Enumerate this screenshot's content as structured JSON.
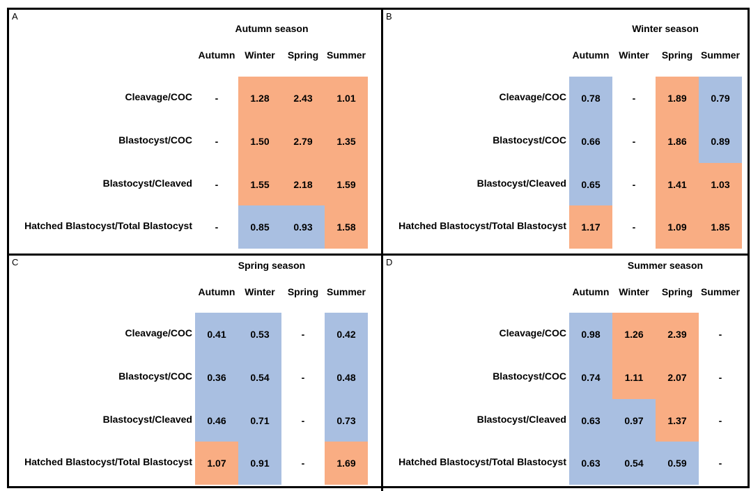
{
  "colors": {
    "higher": "#F9AD83",
    "lower": "#A9BFE1",
    "none": "#ffffff"
  },
  "chart_data": [
    {
      "type": "heatmap",
      "panel": "A",
      "title": "Autumn season",
      "columns": [
        "Autumn",
        "Winter",
        "Spring",
        "Summer"
      ],
      "rows": [
        "Cleavage/COC",
        "Blastocyst/COC",
        "Blastocyst/Cleaved",
        "Hatched Blastocyst/Total Blastocyst"
      ],
      "values": [
        [
          "-",
          "1.28",
          "2.43",
          "1.01"
        ],
        [
          "-",
          "1.50",
          "2.79",
          "1.35"
        ],
        [
          "-",
          "1.55",
          "2.18",
          "1.59"
        ],
        [
          "-",
          "0.85",
          "0.93",
          "1.58"
        ]
      ]
    },
    {
      "type": "heatmap",
      "panel": "B",
      "title": "Winter season",
      "columns": [
        "Autumn",
        "Winter",
        "Spring",
        "Summer"
      ],
      "rows": [
        "Cleavage/COC",
        "Blastocyst/COC",
        "Blastocyst/Cleaved",
        "Hatched Blastocyst/Total Blastocyst"
      ],
      "values": [
        [
          "0.78",
          "-",
          "1.89",
          "0.79"
        ],
        [
          "0.66",
          "-",
          "1.86",
          "0.89"
        ],
        [
          "0.65",
          "-",
          "1.41",
          "1.03"
        ],
        [
          "1.17",
          "-",
          "1.09",
          "1.85"
        ]
      ]
    },
    {
      "type": "heatmap",
      "panel": "C",
      "title": "Spring season",
      "columns": [
        "Autumn",
        "Winter",
        "Spring",
        "Summer"
      ],
      "rows": [
        "Cleavage/COC",
        "Blastocyst/COC",
        "Blastocyst/Cleaved",
        "Hatched Blastocyst/Total Blastocyst"
      ],
      "values": [
        [
          "0.41",
          "0.53",
          "-",
          "0.42"
        ],
        [
          "0.36",
          "0.54",
          "-",
          "0.48"
        ],
        [
          "0.46",
          "0.71",
          "-",
          "0.73"
        ],
        [
          "1.07",
          "0.91",
          "-",
          "1.69"
        ]
      ]
    },
    {
      "type": "heatmap",
      "panel": "D",
      "title": "Summer season",
      "columns": [
        "Autumn",
        "Winter",
        "Spring",
        "Summer"
      ],
      "rows": [
        "Cleavage/COC",
        "Blastocyst/COC",
        "Blastocyst/Cleaved",
        "Hatched Blastocyst/Total Blastocyst"
      ],
      "values": [
        [
          "0.98",
          "1.26",
          "2.39",
          "-"
        ],
        [
          "0.74",
          "1.11",
          "2.07",
          "-"
        ],
        [
          "0.63",
          "0.97",
          "1.37",
          "-"
        ],
        [
          "0.63",
          "0.54",
          "0.59",
          "-"
        ]
      ]
    }
  ]
}
